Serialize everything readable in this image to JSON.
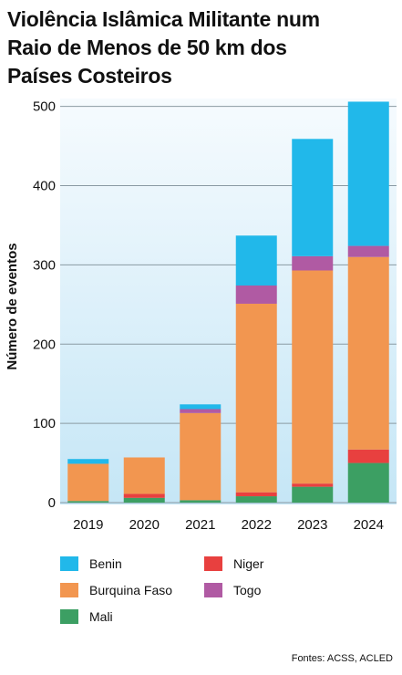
{
  "title_lines": [
    "Violência Islâmica Militante num",
    "Raio de Menos de 50 km dos",
    "Países Costeiros"
  ],
  "source": "Fontes: ACSS, ACLED",
  "colors": {
    "Benin": "#21b8ea",
    "Burquina Faso": "#f29650",
    "Mali": "#3c9f63",
    "Niger": "#e8403f",
    "Togo": "#b05aa3",
    "plot_gradient_top": "#f6fbfe",
    "plot_gradient_bottom": "#c5e6f6",
    "grid": "#8a9aa3"
  },
  "legend_columns": [
    [
      "Benin",
      "Burquina Faso",
      "Mali"
    ],
    [
      "Niger",
      "Togo"
    ]
  ],
  "chart_data": {
    "type": "bar",
    "stacked": true,
    "title": "Violência Islâmica Militante num Raio de Menos de 50 km dos Países Costeiros",
    "ylabel": "Número de eventos",
    "xlabel": "",
    "categories": [
      "2019",
      "2020",
      "2021",
      "2022",
      "2023",
      "2024"
    ],
    "ylim": [
      0,
      510
    ],
    "yticks": [
      0,
      100,
      200,
      300,
      400,
      500
    ],
    "grid": true,
    "legend_position": "bottom",
    "series": [
      {
        "name": "Mali",
        "values": [
          2,
          6,
          3,
          8,
          20,
          50
        ]
      },
      {
        "name": "Niger",
        "values": [
          0,
          5,
          0,
          5,
          4,
          17
        ]
      },
      {
        "name": "Burquina Faso",
        "values": [
          47,
          46,
          110,
          238,
          269,
          243
        ]
      },
      {
        "name": "Togo",
        "values": [
          0,
          0,
          5,
          23,
          18,
          14
        ]
      },
      {
        "name": "Benin",
        "values": [
          6,
          0,
          6,
          63,
          148,
          182
        ]
      }
    ]
  }
}
